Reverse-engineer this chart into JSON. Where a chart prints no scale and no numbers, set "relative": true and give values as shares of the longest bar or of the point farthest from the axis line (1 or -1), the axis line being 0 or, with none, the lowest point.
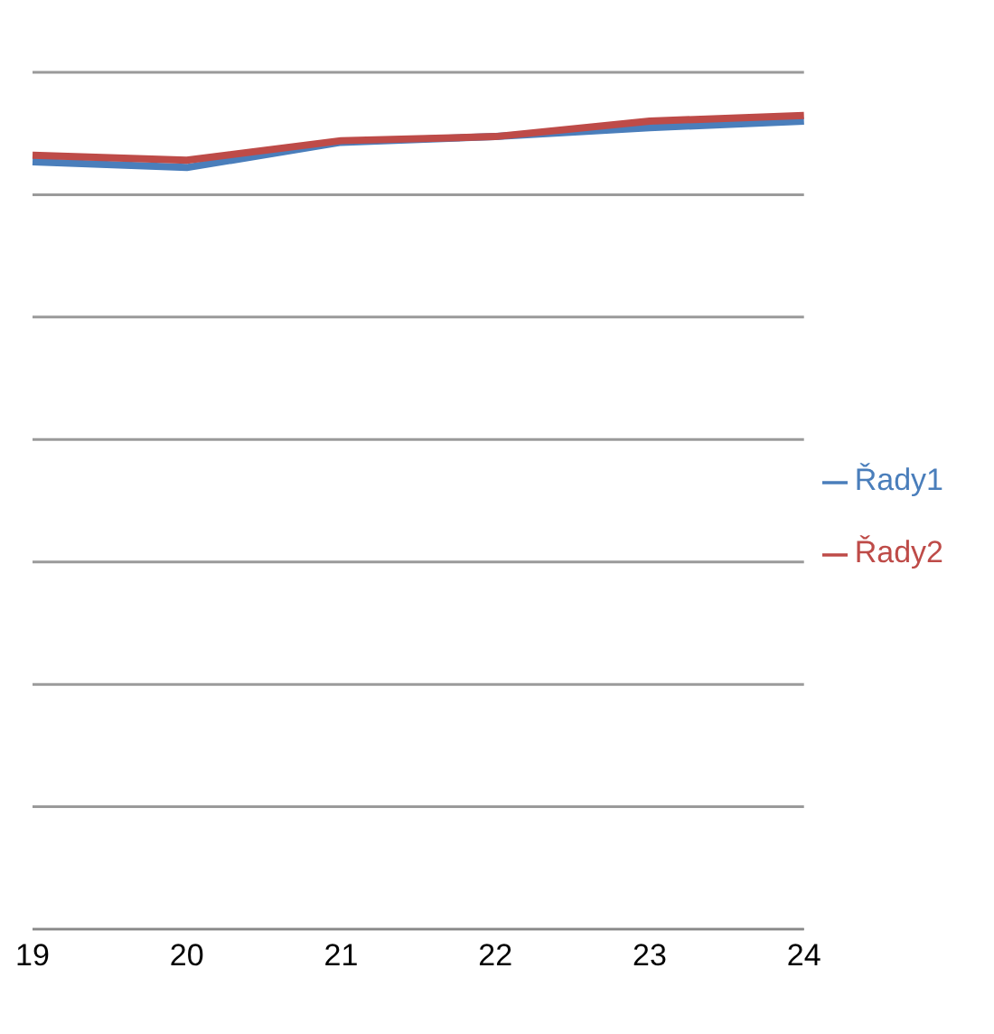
{
  "chart_data": {
    "type": "line",
    "relative": true,
    "categories": [
      "19",
      "20",
      "21",
      "22",
      "23",
      "24"
    ],
    "series": [
      {
        "name": "Řady1",
        "color": "#4a7ebb",
        "values": [
          0.943,
          0.936,
          0.967,
          0.974,
          0.985,
          0.993
        ]
      },
      {
        "name": "Řady2",
        "color": "#be4b48",
        "values": [
          0.951,
          0.945,
          0.969,
          0.974,
          0.993,
          1
        ]
      }
    ],
    "grid": "y",
    "legend": "right",
    "marker": "none",
    "line_style": "solid"
  }
}
